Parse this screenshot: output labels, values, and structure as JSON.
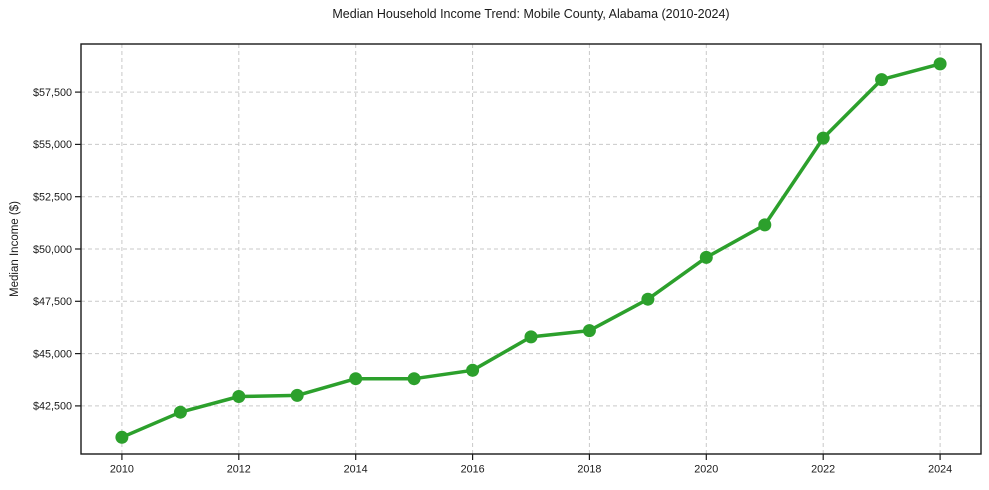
{
  "chart_data": {
    "type": "line",
    "title": "Median Household Income Trend: Mobile County, Alabama (2010-2024)",
    "xlabel": "",
    "ylabel": "Median Income ($)",
    "x": [
      2010,
      2011,
      2012,
      2013,
      2014,
      2015,
      2016,
      2017,
      2018,
      2019,
      2020,
      2021,
      2022,
      2023,
      2024
    ],
    "series": [
      {
        "name": "Median Household Income",
        "values": [
          41000,
          42200,
          42950,
          43000,
          43800,
          43800,
          44200,
          45800,
          46100,
          47600,
          49600,
          51150,
          55300,
          58100,
          58850
        ],
        "color": "#2ca02c",
        "marker": "circle",
        "marker_radius": 6.5
      }
    ],
    "x_ticks": [
      2010,
      2012,
      2014,
      2016,
      2018,
      2020,
      2022,
      2024
    ],
    "y_ticks": [
      42500,
      45000,
      47500,
      50000,
      52500,
      55000,
      57500
    ],
    "y_tick_prefix": "$",
    "xlim": [
      2009.3,
      2024.7
    ],
    "ylim": [
      40200,
      59800
    ],
    "grid": true,
    "grid_style": "dashed",
    "grid_color": "#c9c9c9",
    "axis_color": "#1a1a1a",
    "background_color": "#ffffff",
    "legend": "none"
  }
}
